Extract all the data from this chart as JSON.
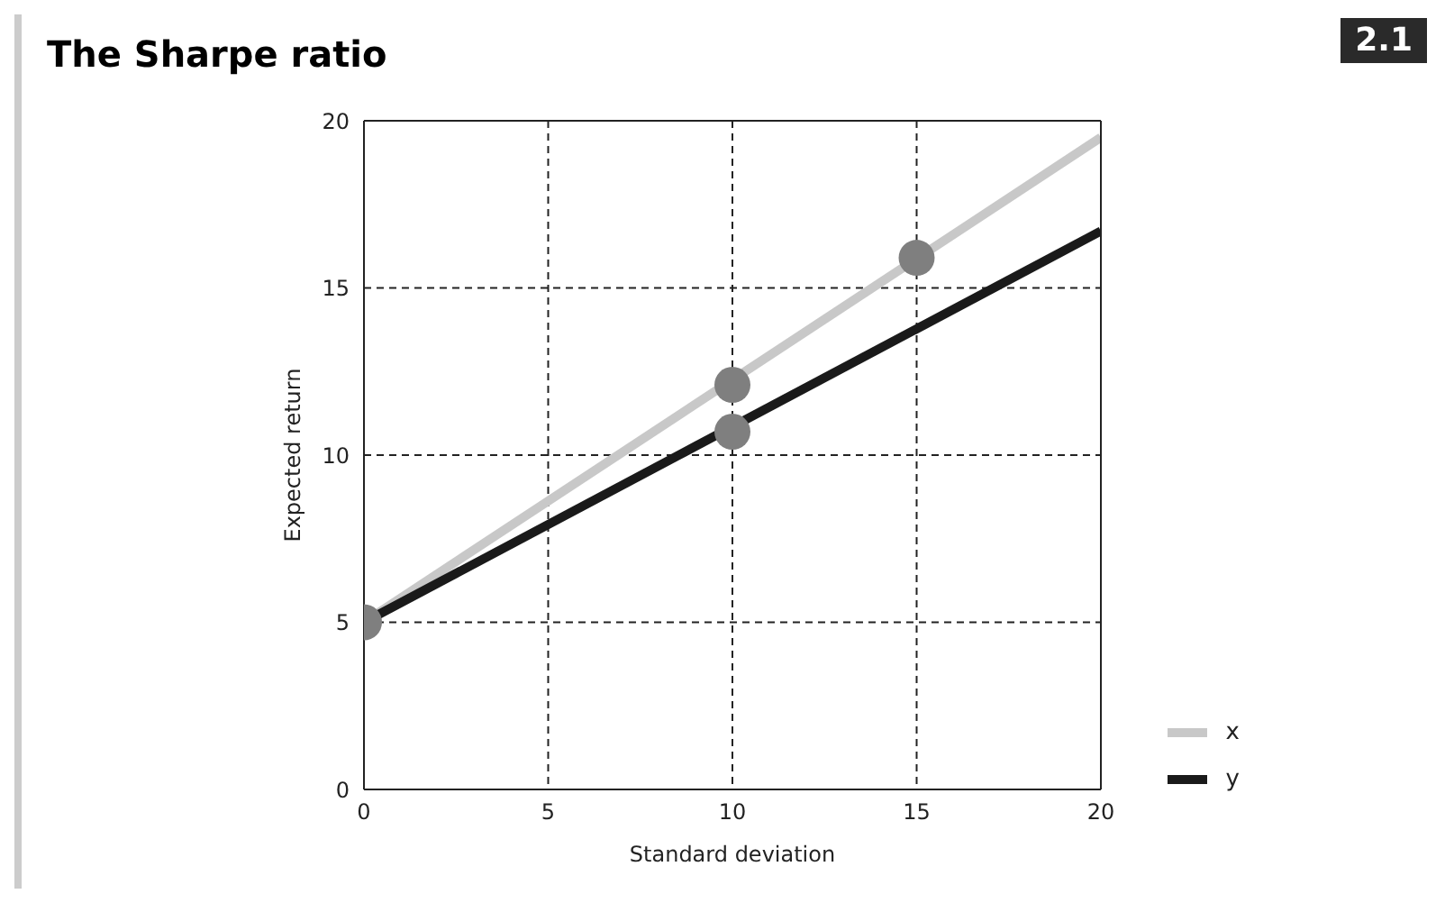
{
  "chart_data": {
    "type": "line",
    "title": "The Sharpe ratio",
    "xlabel": "Standard deviation",
    "ylabel": "Expected return",
    "annotations": [
      "2.1"
    ],
    "xlim": [
      0,
      20
    ],
    "xticks": [
      0,
      5,
      10,
      15,
      20
    ],
    "ylim": [
      0,
      20
    ],
    "yticks": [
      0,
      5,
      10,
      15,
      20
    ],
    "grid": true,
    "legend": "bottom right",
    "line_style": "solid",
    "series": [
      {
        "name": "x",
        "color": "#c8c8c8",
        "x": [
          0,
          20
        ],
        "values": [
          5,
          19.5
        ]
      },
      {
        "name": "y",
        "color": "#1a1a1a",
        "x": [
          0,
          20
        ],
        "values": [
          5,
          16.7
        ]
      },
      {
        "type": "scatter",
        "color": "#7f7f7f",
        "marker": "circle",
        "x": [
          0,
          10,
          10,
          15
        ],
        "values": [
          5,
          12.1,
          10.7,
          15.9
        ]
      }
    ]
  }
}
